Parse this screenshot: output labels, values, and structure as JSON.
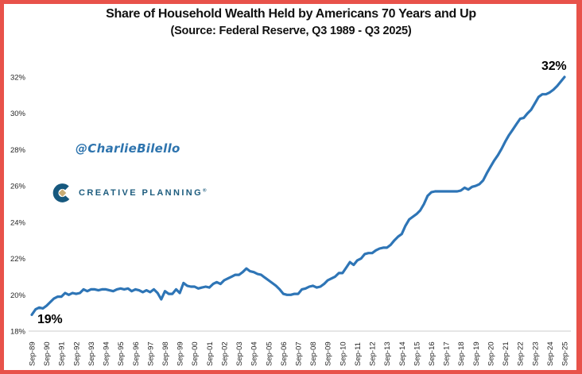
{
  "header": {
    "title": "Share of Household Wealth Held by Americans 70 Years and Up",
    "subtitle": "(Source: Federal Reserve, Q3 1989 - Q3 2025)"
  },
  "watermark": {
    "handle": "@CharlieBilello"
  },
  "brand": {
    "name": "CREATIVE PLANNING",
    "trademark": "®"
  },
  "annotations": {
    "start_label": "19%",
    "end_label": "32%"
  },
  "colors": {
    "line": "#2E75B6",
    "border": "#E8524A",
    "axis": "#D6D6D6",
    "watermark_blue": "#2E74AE",
    "brand_blue": "#1D5C7E",
    "brand_gold": "#C9AC74",
    "text": "#111111"
  },
  "chart_data": {
    "type": "line",
    "title": "Share of Household Wealth Held by Americans 70 Years and Up",
    "subtitle": "(Source: Federal Reserve, Q3 1989 - Q3 2025)",
    "frequency": "quarterly",
    "x_start": "1989-Q3",
    "x_end": "2025-Q3",
    "ylim": [
      18,
      32
    ],
    "grid": false,
    "legend": false,
    "y_tick_labels": [
      "18%",
      "20%",
      "22%",
      "24%",
      "26%",
      "28%",
      "30%",
      "32%"
    ],
    "x_tick_labels": [
      "Sep-89",
      "Sep-90",
      "Sep-91",
      "Sep-92",
      "Sep-93",
      "Sep-94",
      "Sep-95",
      "Sep-96",
      "Sep-97",
      "Sep-98",
      "Sep-99",
      "Sep-00",
      "Sep-01",
      "Sep-02",
      "Sep-03",
      "Sep-04",
      "Sep-05",
      "Sep-06",
      "Sep-07",
      "Sep-08",
      "Sep-09",
      "Sep-10",
      "Sep-11",
      "Sep-12",
      "Sep-13",
      "Sep-14",
      "Sep-15",
      "Sep-16",
      "Sep-17",
      "Sep-18",
      "Sep-19",
      "Sep-20",
      "Sep-21",
      "Sep-22",
      "Sep-23",
      "Sep-24",
      "Sep-25"
    ],
    "series": [
      {
        "name": "Share of household wealth held by Americans 70 years and up",
        "values": [
          18.9,
          19.2,
          19.3,
          19.25,
          19.4,
          19.6,
          19.8,
          19.9,
          19.9,
          20.1,
          20.0,
          20.1,
          20.05,
          20.1,
          20.3,
          20.2,
          20.3,
          20.3,
          20.25,
          20.3,
          20.3,
          20.25,
          20.2,
          20.3,
          20.35,
          20.3,
          20.35,
          20.2,
          20.3,
          20.25,
          20.15,
          20.25,
          20.15,
          20.3,
          20.1,
          19.75,
          20.2,
          20.05,
          20.05,
          20.3,
          20.1,
          20.65,
          20.5,
          20.45,
          20.45,
          20.35,
          20.4,
          20.45,
          20.4,
          20.6,
          20.7,
          20.6,
          20.8,
          20.9,
          21.0,
          21.1,
          21.1,
          21.25,
          21.45,
          21.3,
          21.25,
          21.15,
          21.1,
          20.95,
          20.8,
          20.65,
          20.5,
          20.3,
          20.05,
          20.0,
          20.0,
          20.05,
          20.05,
          20.3,
          20.35,
          20.45,
          20.5,
          20.4,
          20.45,
          20.6,
          20.8,
          20.9,
          21.0,
          21.2,
          21.2,
          21.5,
          21.8,
          21.65,
          21.9,
          22.0,
          22.25,
          22.3,
          22.3,
          22.45,
          22.55,
          22.6,
          22.6,
          22.75,
          23.0,
          23.2,
          23.35,
          23.8,
          24.15,
          24.3,
          24.45,
          24.65,
          25.0,
          25.45,
          25.65,
          25.7,
          25.7,
          25.7,
          25.7,
          25.7,
          25.7,
          25.7,
          25.75,
          25.9,
          25.8,
          25.95,
          26.0,
          26.1,
          26.3,
          26.7,
          27.05,
          27.4,
          27.7,
          28.05,
          28.45,
          28.8,
          29.1,
          29.4,
          29.7,
          29.75,
          30.0,
          30.2,
          30.55,
          30.9,
          31.05,
          31.05,
          31.15,
          31.3,
          31.5,
          31.75,
          32.0
        ]
      }
    ],
    "annotated_points": [
      {
        "x": "1989-Q3",
        "label": "19%"
      },
      {
        "x": "2025-Q3",
        "label": "32%"
      }
    ]
  }
}
